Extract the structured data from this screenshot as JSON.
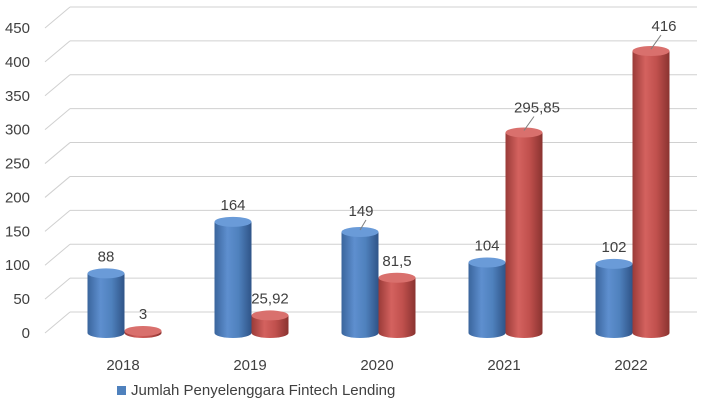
{
  "chart_data": {
    "type": "bar",
    "style": "3d-cylinder",
    "categories": [
      "2018",
      "2019",
      "2020",
      "2021",
      "2022"
    ],
    "series": [
      {
        "name": "Jumlah Penyelenggara Fintech Lending",
        "color": "#4f81bd",
        "values": [
          88,
          164,
          149,
          104,
          102
        ],
        "labels": [
          "88",
          "164",
          "149",
          "104",
          "102"
        ]
      },
      {
        "color": "#c0504d",
        "values": [
          3,
          25.92,
          81.5,
          295.85,
          416
        ],
        "labels": [
          "3",
          "25,92",
          "81,5",
          "295,85",
          "416"
        ]
      }
    ],
    "ylim": [
      0,
      450
    ],
    "yticks": [
      "0",
      "50",
      "100",
      "150",
      "200",
      "250",
      "300",
      "350",
      "400",
      "450"
    ],
    "grid": true,
    "legend_position": "bottom-left"
  }
}
